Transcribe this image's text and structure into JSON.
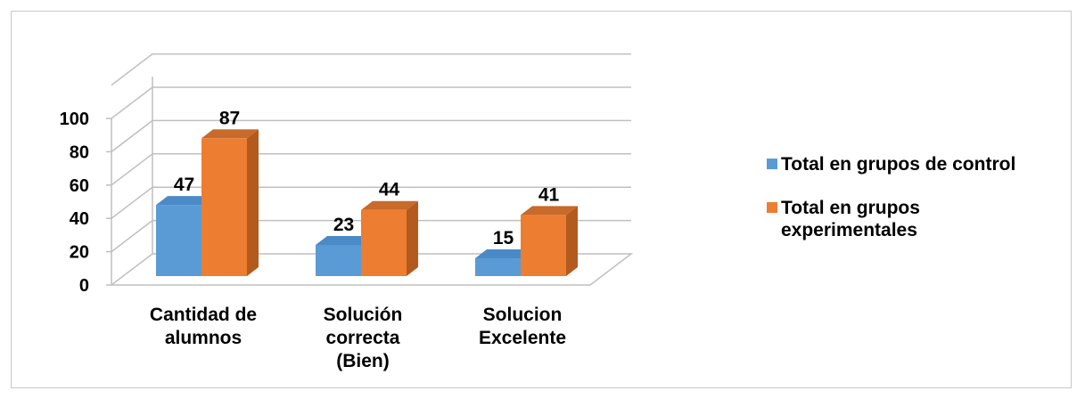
{
  "chart_data": {
    "type": "bar",
    "style": "3d-clustered-column",
    "categories": [
      [
        "Cantidad de",
        "alumnos"
      ],
      [
        "Solución",
        "correcta",
        "(Bien)"
      ],
      [
        "Solucion",
        "Excelente"
      ]
    ],
    "series": [
      {
        "name": "Total en grupos de control",
        "values": [
          47,
          23,
          15
        ],
        "color": "#5b9bd5",
        "side_color": "#3f7fbb",
        "top_color": "#4a8ac7"
      },
      {
        "name": "Total en grupos experimentales",
        "values": [
          87,
          44,
          41
        ],
        "color": "#ed7d31",
        "side_color": "#b35a1f",
        "top_color": "#c76a2a"
      }
    ],
    "yticks": [
      "0",
      "20",
      "40",
      "60",
      "80",
      "100"
    ],
    "ylim": [
      0,
      100
    ],
    "grid": true,
    "legend_position": "right",
    "data_labels": true
  },
  "legend": {
    "items": [
      {
        "lines": [
          "Total en grupos de control"
        ],
        "color": "#5b9bd5"
      },
      {
        "lines": [
          "Total en grupos",
          "experimentales"
        ],
        "color": "#ed7d31"
      }
    ]
  }
}
